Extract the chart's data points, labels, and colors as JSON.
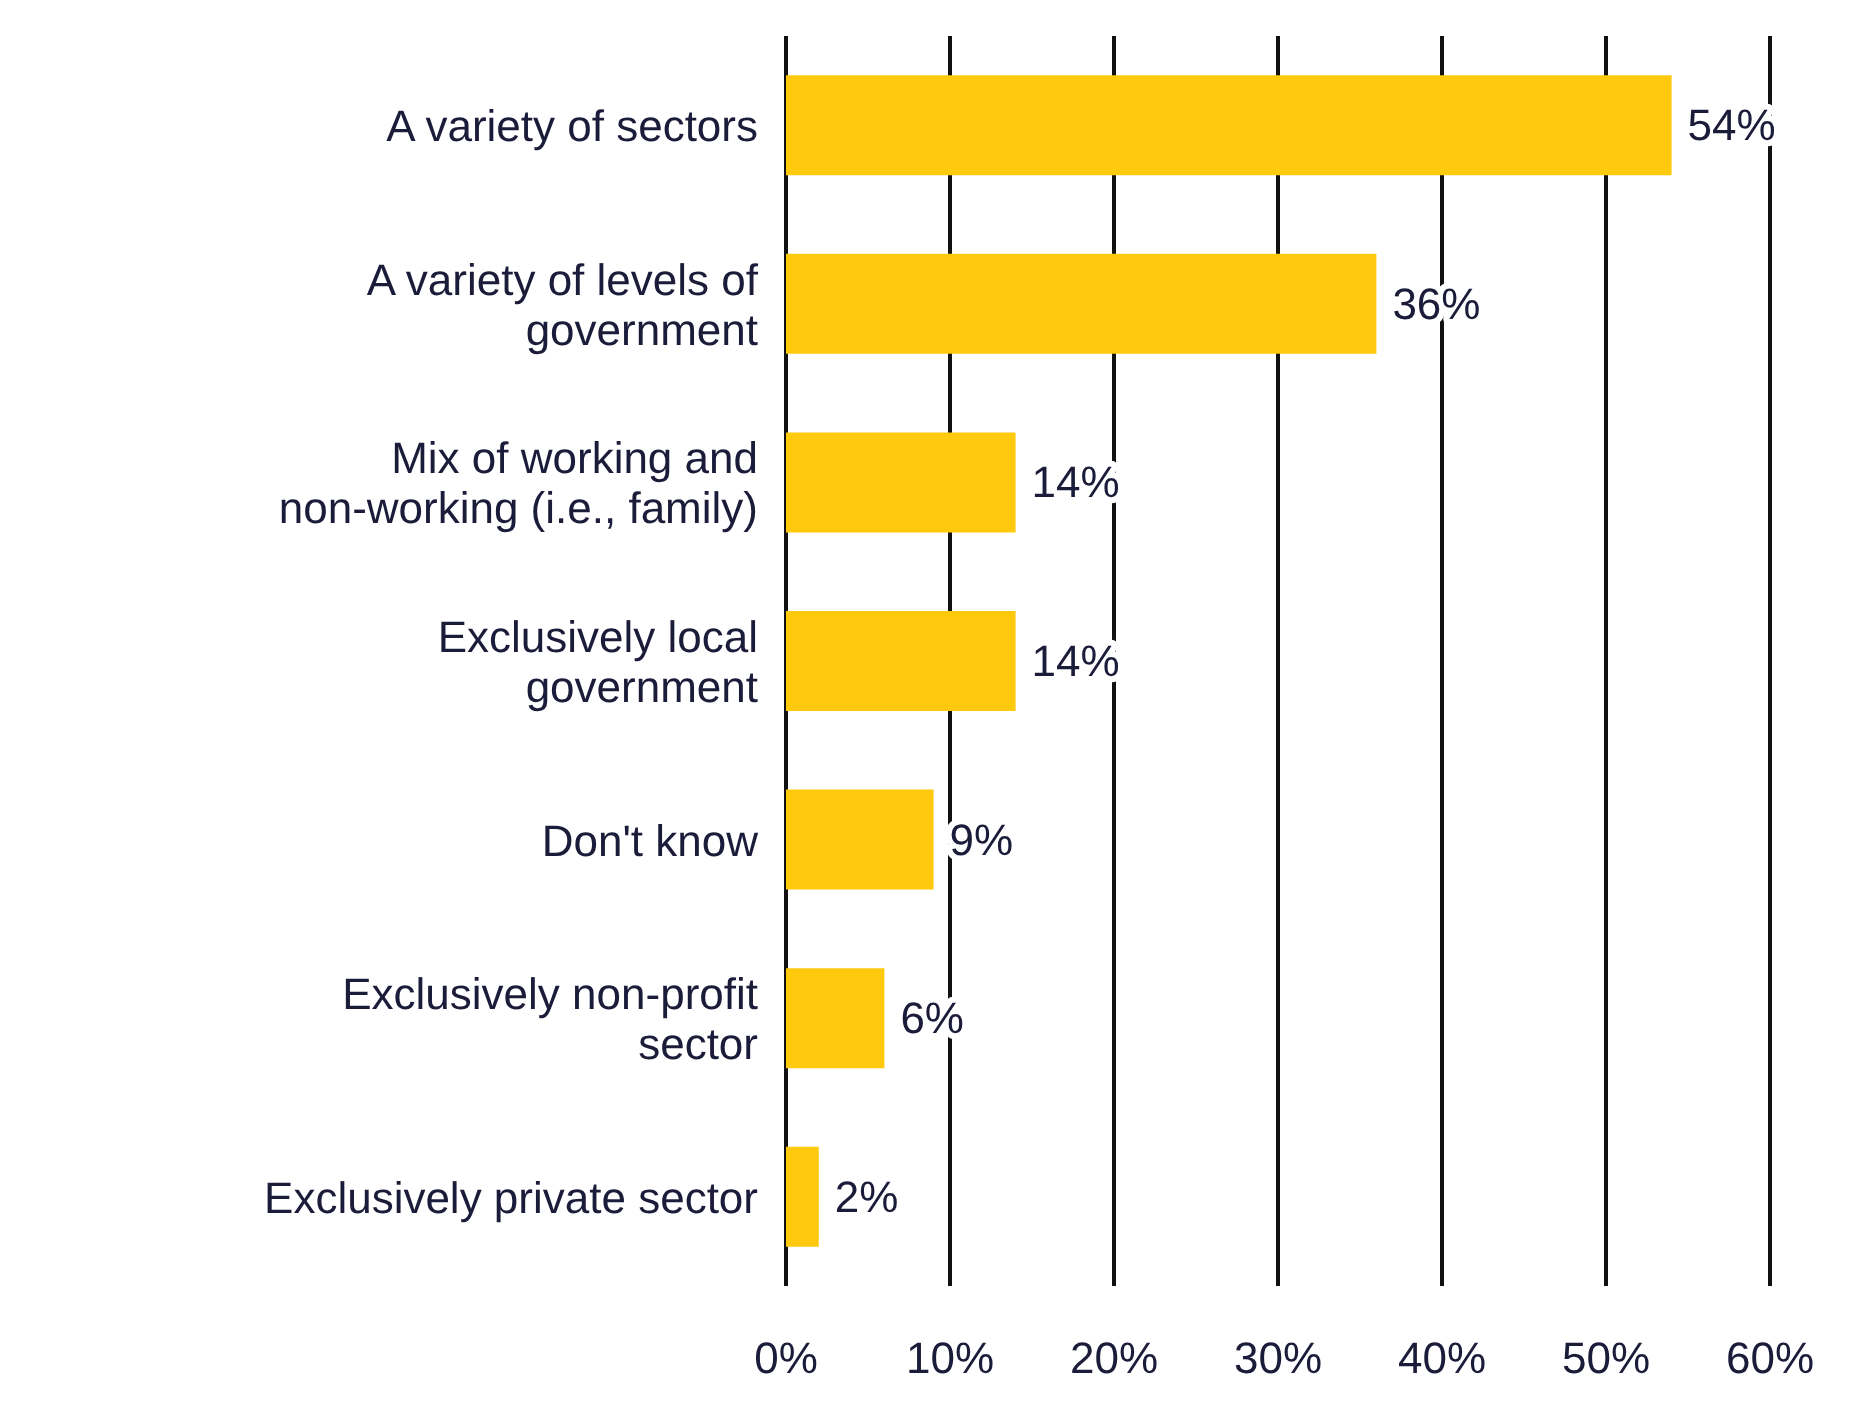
{
  "chart_data": {
    "type": "bar",
    "orientation": "horizontal",
    "categories": [
      "A variety of sectors",
      "A variety of levels of government",
      "Mix of working and non-working (i.e., family)",
      "Exclusively local government",
      "Don't know",
      "Exclusively non-profit sector",
      "Exclusively private sector"
    ],
    "values": [
      54,
      36,
      14,
      14,
      9,
      6,
      2
    ],
    "value_labels": [
      "54%",
      "36%",
      "14%",
      "14%",
      "9%",
      "6%",
      "2%"
    ],
    "color": "#ffc90e",
    "xlim": [
      0,
      60
    ],
    "xticks": [
      {
        "value": 0,
        "label": "0%"
      },
      {
        "value": 10,
        "label": "10%"
      },
      {
        "value": 20,
        "label": "20%"
      },
      {
        "value": 30,
        "label": "30%"
      },
      {
        "value": 40,
        "label": "40%"
      },
      {
        "value": 50,
        "label": "50%"
      },
      {
        "value": 60,
        "label": "60%"
      }
    ],
    "grid": "x"
  }
}
